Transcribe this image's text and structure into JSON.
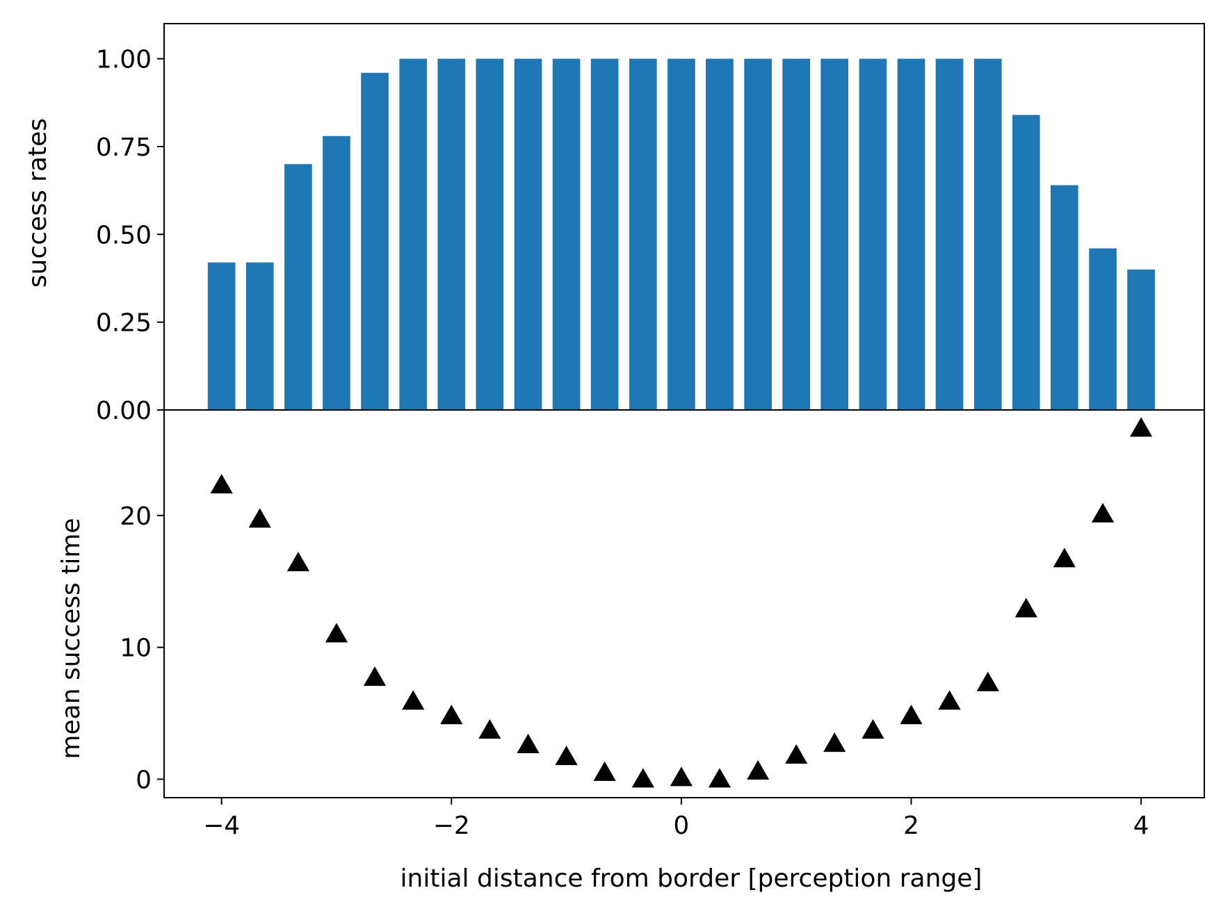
{
  "chart_data": [
    {
      "type": "bar",
      "panel": "top",
      "ylabel": "success rates",
      "ylim": [
        0,
        1.1
      ],
      "yticks": [
        {
          "value": 0,
          "label": "0.00"
        },
        {
          "value": 0.25,
          "label": "0.25"
        },
        {
          "value": 0.5,
          "label": "0.50"
        },
        {
          "value": 0.75,
          "label": "0.75"
        },
        {
          "value": 1.0,
          "label": "1.00"
        }
      ],
      "bar_color": "#1f77b4",
      "x": [
        -4,
        -3.667,
        -3.333,
        -3,
        -2.667,
        -2.333,
        -2,
        -1.667,
        -1.333,
        -1,
        -0.667,
        -0.333,
        0,
        0.333,
        0.667,
        1,
        1.333,
        1.667,
        2,
        2.333,
        2.667,
        3,
        3.333,
        3.667,
        4
      ],
      "values": [
        0.42,
        0.42,
        0.7,
        0.78,
        0.96,
        1.0,
        1.0,
        1.0,
        1.0,
        1.0,
        1.0,
        1.0,
        1.0,
        1.0,
        1.0,
        1.0,
        1.0,
        1.0,
        1.0,
        1.0,
        1.0,
        0.84,
        0.64,
        0.46,
        0.4
      ]
    },
    {
      "type": "scatter",
      "panel": "bottom",
      "marker": "triangle",
      "marker_color": "#000000",
      "xlabel": "initial distance from border [perception range]",
      "ylabel": "mean success time",
      "xlim": [
        -4.5,
        4.55
      ],
      "ylim": [
        -1.4,
        28
      ],
      "xticks": [
        {
          "value": -4,
          "label": "−4"
        },
        {
          "value": -2,
          "label": "−2"
        },
        {
          "value": 0,
          "label": "0"
        },
        {
          "value": 2,
          "label": "2"
        },
        {
          "value": 4,
          "label": "4"
        }
      ],
      "yticks": [
        {
          "value": 0,
          "label": "0"
        },
        {
          "value": 10,
          "label": "10"
        },
        {
          "value": 20,
          "label": "20"
        }
      ],
      "x": [
        -4,
        -3.667,
        -3.333,
        -3,
        -2.667,
        -2.333,
        -2,
        -1.667,
        -1.333,
        -1,
        -0.667,
        -0.333,
        0,
        0.333,
        0.667,
        1,
        1.333,
        1.667,
        2,
        2.333,
        2.667,
        3,
        3.333,
        3.667,
        4
      ],
      "y": [
        22.3,
        19.7,
        16.4,
        11.0,
        7.7,
        5.9,
        4.8,
        3.7,
        2.6,
        1.7,
        0.5,
        0.0,
        0.1,
        0.0,
        0.6,
        1.8,
        2.7,
        3.7,
        4.8,
        5.9,
        7.3,
        12.9,
        16.7,
        20.1,
        26.6
      ]
    }
  ]
}
